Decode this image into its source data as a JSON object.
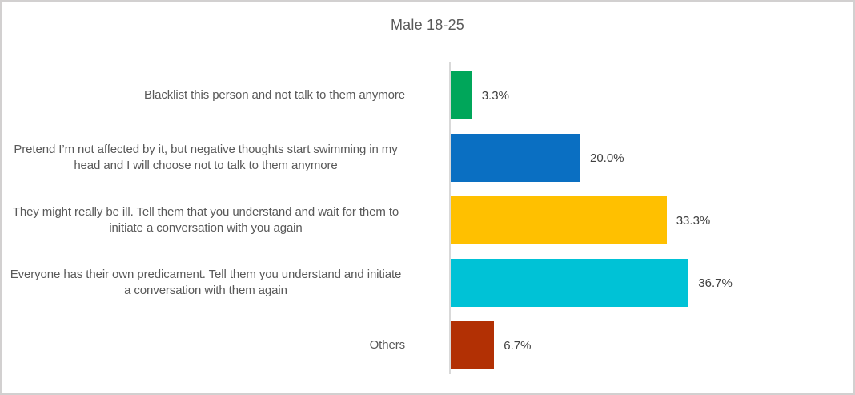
{
  "title": "Male 18-25",
  "chart_data": {
    "type": "bar",
    "orientation": "horizontal",
    "title": "Male 18-25",
    "categories": [
      "Blacklist this person and not talk to them anymore",
      "Pretend I’m not affected by it, but negative thoughts start swimming in my head and I will choose not to talk to them anymore",
      "They might really be ill. Tell them that you understand and wait for them to initiate a conversation with you again",
      "Everyone has their own predicament. Tell them you understand and initiate a conversation with them again",
      "Others"
    ],
    "values": [
      3.3,
      20.0,
      33.3,
      36.7,
      6.7
    ],
    "value_labels": [
      "3.3%",
      "20.0%",
      "33.3%",
      "36.7%",
      "6.7%"
    ],
    "bar_colors": [
      "#00a65a",
      "#0a6fc2",
      "#ffc000",
      "#00c2d6",
      "#b23004"
    ],
    "data_label_position": "outside-end",
    "grid": false,
    "legend": false,
    "axis_line_color": "#d9d9d9"
  },
  "frame": {
    "border_color": "#d2d0d0",
    "background": "#ffffff",
    "title_color": "#595959",
    "category_text_color": "#595959",
    "value_text_color": "#404040"
  }
}
